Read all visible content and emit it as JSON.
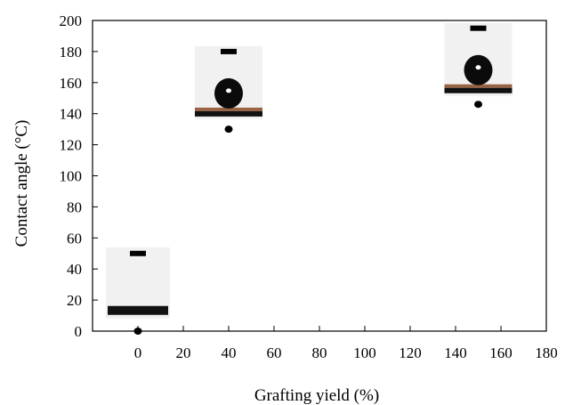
{
  "chart_data": {
    "type": "scatter",
    "xlabel": "Grafting yield (%)",
    "ylabel": "Contact angle (°C)",
    "xlim": [
      -20,
      180
    ],
    "ylim": [
      0,
      200
    ],
    "x_ticks": [
      0,
      20,
      40,
      60,
      80,
      100,
      120,
      140,
      160,
      180
    ],
    "y_ticks": [
      0,
      20,
      40,
      60,
      80,
      100,
      120,
      140,
      160,
      180,
      200
    ],
    "grid": false,
    "x": [
      0,
      40,
      150
    ],
    "y": [
      0,
      130,
      146
    ],
    "error_bar_tops": [
      50,
      180,
      195
    ],
    "droplet_insets": [
      {
        "x": 0,
        "droplet": "spread-film"
      },
      {
        "x": 40,
        "droplet": "sphere"
      },
      {
        "x": 150,
        "droplet": "sphere"
      }
    ],
    "colors": {
      "marker": "#000000",
      "inset_bg": "#f1f1f1",
      "substrate": "#8a4a24"
    }
  }
}
